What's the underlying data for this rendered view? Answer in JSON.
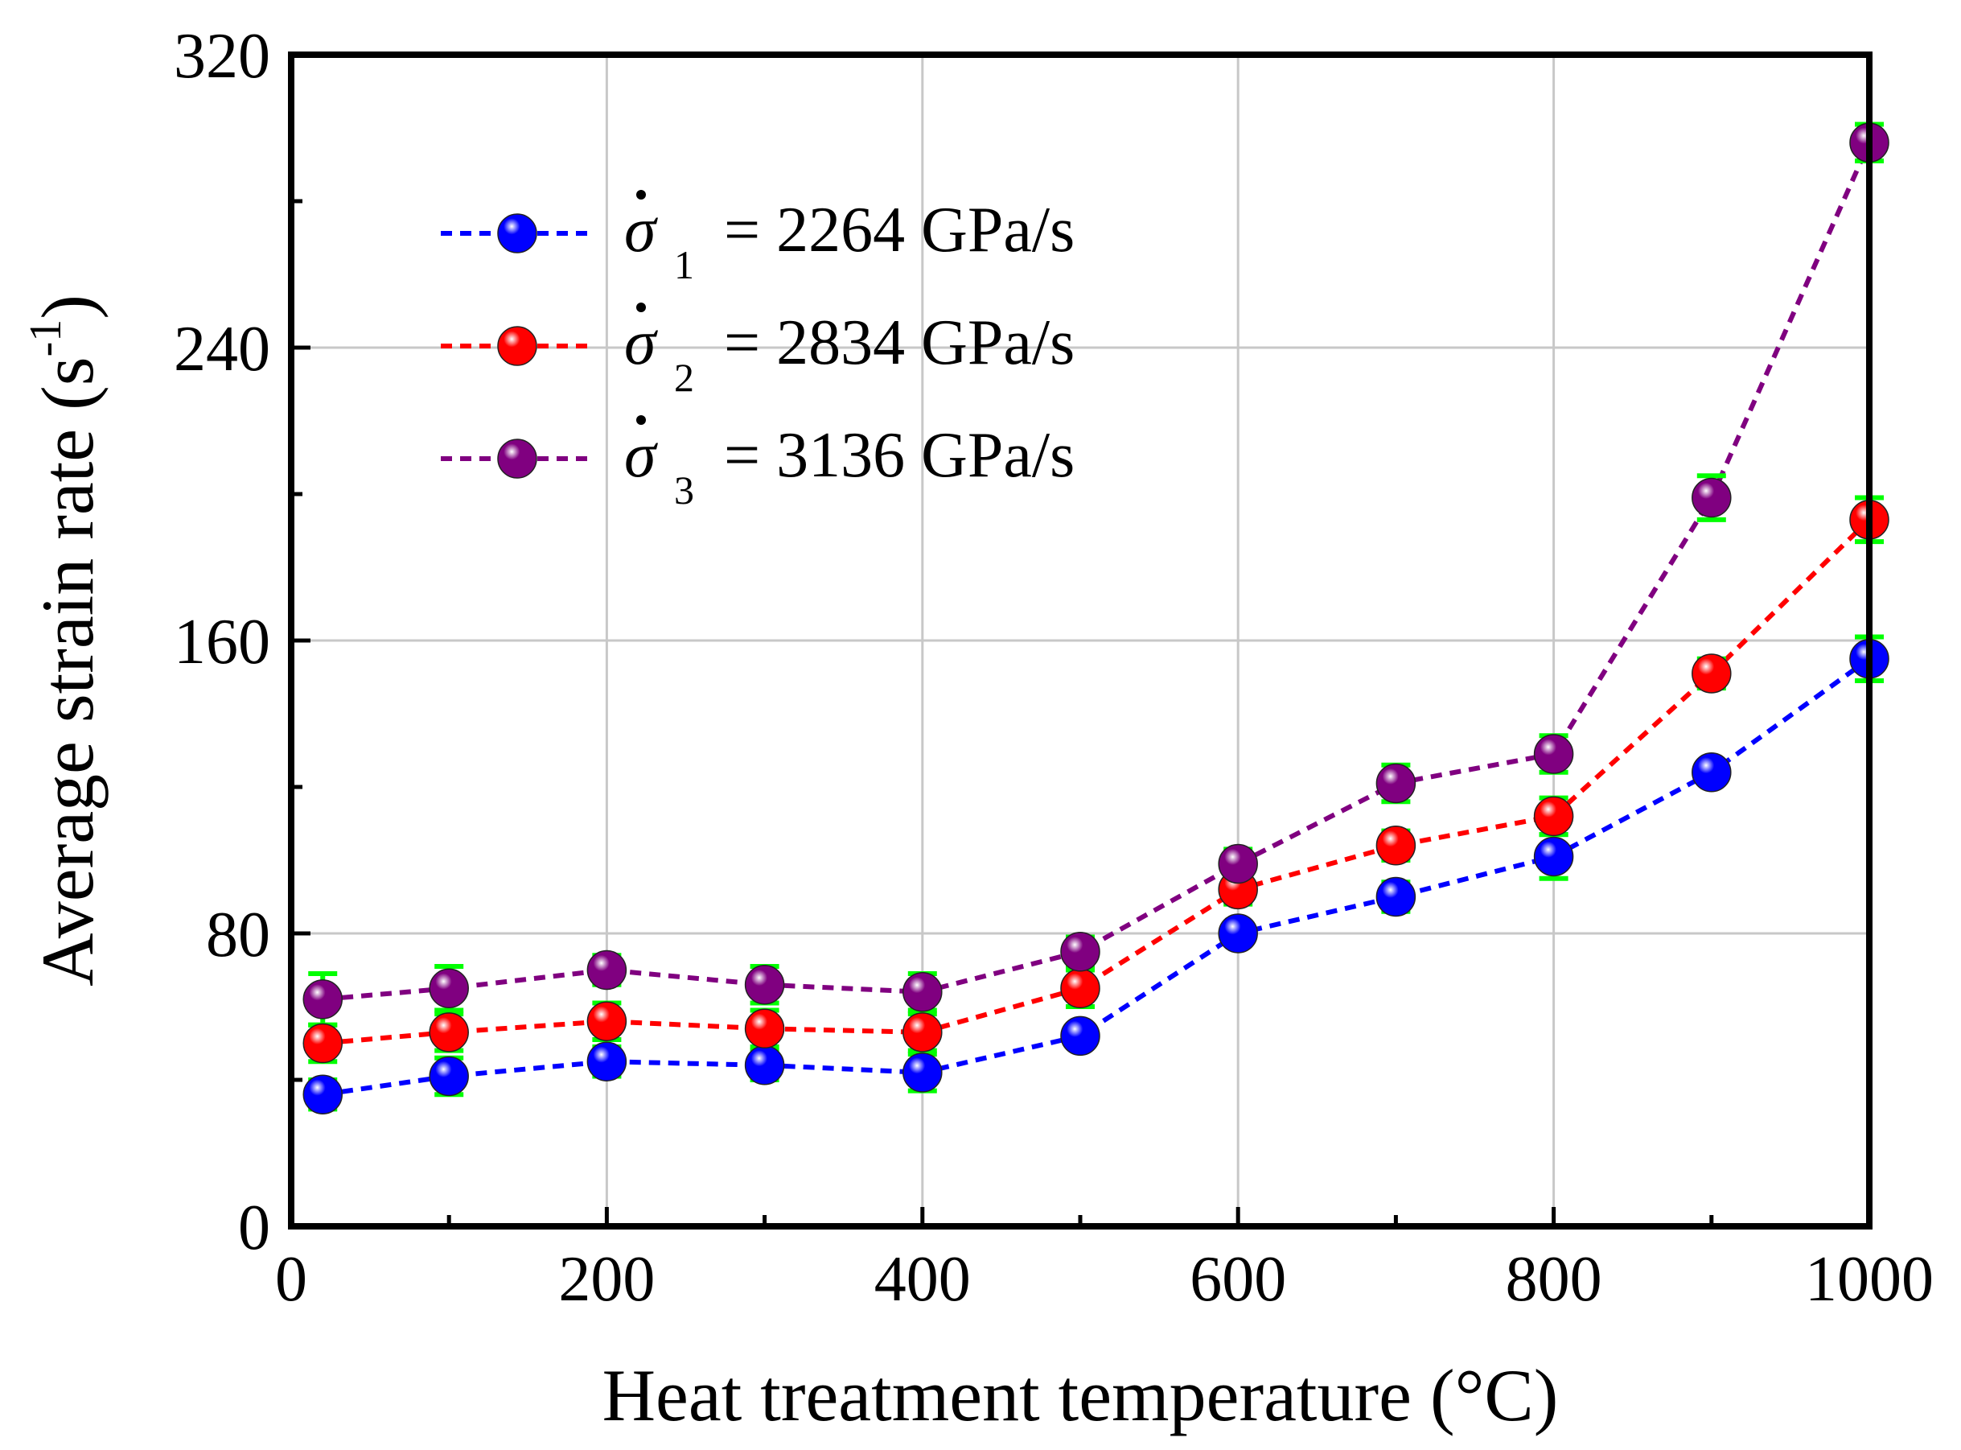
{
  "chart_data": {
    "type": "line",
    "title": "",
    "xlabel": "Heat treatment temperature (°C)",
    "ylabel_main": "Average strain rate (s",
    "ylabel_sup": "-1",
    "ylabel_close": ")",
    "xlim": [
      0,
      1000
    ],
    "ylim": [
      0,
      320
    ],
    "x_major_ticks": [
      0,
      200,
      400,
      600,
      800,
      1000
    ],
    "x_minor_ticks": [
      100,
      300,
      500,
      700,
      900
    ],
    "x_tick_labels": [
      "0",
      "200",
      "400",
      "600",
      "800",
      "1000"
    ],
    "y_major_ticks": [
      0,
      80,
      160,
      240,
      320
    ],
    "y_minor_ticks": [
      40,
      120,
      200,
      280
    ],
    "y_tick_labels": [
      "0",
      "80",
      "160",
      "240",
      "320"
    ],
    "grid": true,
    "legend_position": "top-left",
    "x": [
      20,
      100,
      200,
      300,
      400,
      500,
      600,
      700,
      800,
      900,
      1000
    ],
    "series": [
      {
        "name": "σ̇1 = 2264 GPa/s",
        "legend_symbol": "σ",
        "legend_sub": "1",
        "legend_value": "= 2264 GPa/s",
        "color": "#0000ff",
        "values": [
          36,
          41,
          45,
          44,
          42,
          52,
          80,
          90,
          101,
          124,
          155
        ],
        "errors": [
          4,
          5,
          4,
          4,
          5,
          3,
          3,
          4,
          6,
          3,
          6
        ]
      },
      {
        "name": "σ̇2 = 2834 GPa/s",
        "legend_symbol": "σ",
        "legend_sub": "2",
        "legend_value": "= 2834 GPa/s",
        "color": "#ff0000",
        "values": [
          50,
          53,
          56,
          54,
          53,
          65,
          92,
          104,
          112,
          151,
          193
        ],
        "errors": [
          5,
          5,
          5,
          5,
          5,
          5,
          4,
          4,
          5,
          4,
          6
        ]
      },
      {
        "name": "σ̇3 = 3136 GPa/s",
        "legend_symbol": "σ",
        "legend_sub": "3",
        "legend_value": "= 3136 GPa/s",
        "color": "#800080",
        "values": [
          62,
          65,
          70,
          66,
          64,
          75,
          99,
          121,
          129,
          199,
          296
        ],
        "errors": [
          7,
          6,
          4,
          5,
          5,
          4,
          4,
          5,
          5,
          6,
          5
        ]
      }
    ],
    "error_bar_color": "#00ff00"
  }
}
